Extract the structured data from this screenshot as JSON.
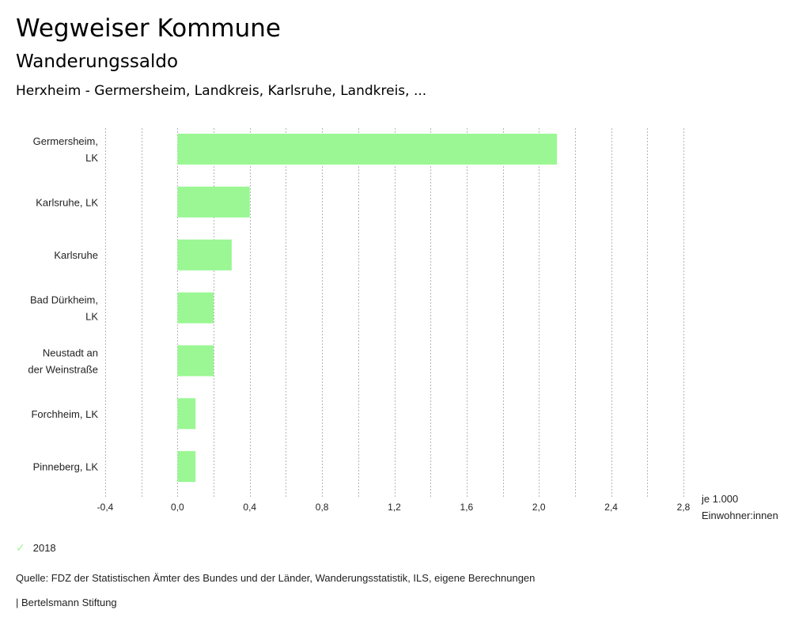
{
  "header": {
    "title": "Wegweiser Kommune",
    "subtitle": "Wanderungssaldo",
    "region": "Herxheim - Germersheim, Landkreis, Karlsruhe, Landkreis, ..."
  },
  "chart_data": {
    "type": "bar",
    "orientation": "horizontal",
    "title": "Wanderungssaldo",
    "categories": [
      [
        "Germersheim,",
        "LK"
      ],
      [
        "Karlsruhe, LK"
      ],
      [
        "Karlsruhe"
      ],
      [
        "Bad Dürkheim,",
        "LK"
      ],
      [
        "Neustadt an",
        "der Weinstraße"
      ],
      [
        "Forchheim, LK"
      ],
      [
        "Pinneberg, LK"
      ]
    ],
    "series": [
      {
        "name": "2018",
        "values": [
          2.1,
          0.4,
          0.3,
          0.2,
          0.2,
          0.1,
          0.1
        ],
        "color": "#9af793"
      }
    ],
    "xlim": [
      -0.4,
      2.8
    ],
    "xticks": [
      -0.4,
      0.0,
      0.4,
      0.8,
      1.2,
      1.6,
      2.0,
      2.4,
      2.8
    ],
    "xtick_labels": [
      "-0,4",
      "0,0",
      "0,4",
      "0,8",
      "1,2",
      "1,6",
      "2,0",
      "2,4",
      "2,8"
    ],
    "grid_step": 0.2,
    "grid": true,
    "xlabel": [
      "je 1.000",
      "Einwohner:innen"
    ],
    "ylabel": "",
    "legend_position": "bottom-left"
  },
  "legend": {
    "items": [
      {
        "label": "2018",
        "icon": "check-icon",
        "color": "#9af793"
      }
    ]
  },
  "footer": {
    "source": "Quelle: FDZ der Statistischen Ämter des Bundes und der Länder, Wanderungsstatistik, ILS, eigene Berechnungen",
    "brand": "| Bertelsmann Stiftung"
  }
}
